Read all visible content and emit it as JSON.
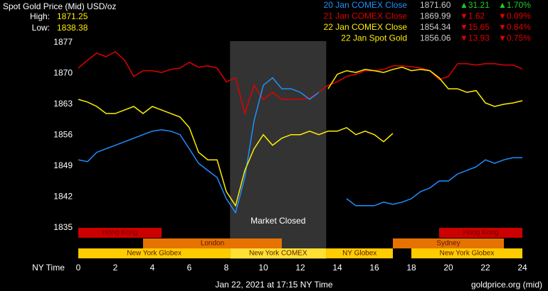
{
  "chart_data": {
    "type": "line",
    "title": "Spot Gold Price (Mid) USD/oz",
    "high": {
      "label": "High:",
      "value": 1871.25
    },
    "low": {
      "label": "Low:",
      "value": 1838.38
    },
    "x_label": "NY Time",
    "footer_left": "Jan 22, 2021 at 17:15 NY Time",
    "footer_right": "goldprice.org (mid)",
    "xlim": [
      0,
      24
    ],
    "xticks": [
      0,
      2,
      4,
      6,
      8,
      10,
      12,
      14,
      16,
      18,
      20,
      22,
      24
    ],
    "ylim": [
      1827.9,
      1877.3
    ],
    "yticks": [
      1835,
      1842,
      1849,
      1856,
      1863,
      1870,
      1877
    ],
    "grid": false,
    "closed": {
      "start": 8.2,
      "end": 13.4,
      "label": "Market Closed",
      "color": "#333333"
    },
    "x": [
      0,
      0.5,
      1,
      1.5,
      2,
      2.5,
      3,
      3.5,
      4,
      4.5,
      5,
      5.5,
      6,
      6.5,
      7,
      7.5,
      8,
      8.5,
      9,
      9.5,
      10,
      10.5,
      11,
      11.5,
      12,
      12.5,
      13,
      13.5,
      14,
      14.5,
      15,
      15.5,
      16,
      16.5,
      17,
      17.5,
      18,
      18.5,
      19,
      19.5,
      20,
      20.5,
      21,
      21.5,
      22,
      22.5,
      23,
      23.5,
      24
    ],
    "series": [
      {
        "name": "20 Jan COMEX Close",
        "color": "#1e90ff",
        "price": "1871.60",
        "change": "▲31.21",
        "change_pct": "▲1.70%",
        "change_color": "#22cc22",
        "values": [
          1850.4,
          1850.0,
          1852.1,
          1852.9,
          1853.7,
          1854.5,
          1855.3,
          1856.1,
          1856.9,
          1857.2,
          1856.9,
          1856.1,
          1852.9,
          1849.6,
          1848.0,
          1846.4,
          1841.6,
          1838.4,
          1846.4,
          1859.3,
          1867.3,
          1869.0,
          1866.5,
          1866.5,
          1865.7,
          1864.1,
          1865.7,
          null,
          null,
          1841.6,
          1840.0,
          1840.0,
          1840.0,
          1840.8,
          1840.3,
          1840.8,
          1841.6,
          1843.2,
          1844.0,
          1845.6,
          1845.6,
          1847.2,
          1848.0,
          1848.8,
          1850.4,
          1849.6,
          1850.4,
          1850.9,
          1850.9
        ]
      },
      {
        "name": "21 Jan COMEX Close",
        "color": "#e00000",
        "price": "1869.99",
        "change": "▼1.62",
        "change_pct": "▼0.09%",
        "change_color": "#e00000",
        "values": [
          1871.2,
          1873.0,
          1874.6,
          1873.8,
          1874.9,
          1873.0,
          1869.3,
          1870.6,
          1870.6,
          1870.2,
          1870.9,
          1871.2,
          1872.5,
          1871.4,
          1871.7,
          1871.2,
          1868.1,
          1869.0,
          1860.9,
          1867.3,
          1864.1,
          1865.7,
          1864.1,
          1864.1,
          1864.1,
          1864.4,
          1865.7,
          1867.3,
          1868.1,
          1869.3,
          1869.8,
          1870.6,
          1870.6,
          1870.9,
          1871.7,
          1871.7,
          1871.5,
          1871.2,
          1870.6,
          1868.6,
          1869.3,
          1872.2,
          1872.2,
          1871.9,
          1872.2,
          1872.2,
          1871.9,
          1871.9,
          1871.0
        ]
      },
      {
        "name": "22 Jan COMEX Close",
        "color": "#ffee00",
        "price": "1854.34",
        "change": "▼15.65",
        "change_pct": "▼0.84%",
        "change_color": "#e00000",
        "values": [
          null,
          null,
          null,
          null,
          null,
          null,
          null,
          null,
          null,
          null,
          null,
          null,
          null,
          null,
          null,
          null,
          null,
          null,
          null,
          null,
          null,
          null,
          null,
          null,
          null,
          null,
          null,
          1866.5,
          1869.8,
          1870.6,
          1870.2,
          1870.9,
          1870.6,
          1870.2,
          1870.9,
          1871.4,
          1870.6,
          1870.9,
          1870.6,
          1869.0,
          1866.5,
          1866.5,
          1865.7,
          1866.1,
          1863.3,
          1862.5,
          1863.0,
          1863.3,
          1863.8
        ]
      },
      {
        "name": "22 Jan Spot Gold",
        "color": "#ffee00",
        "price": "1856.06",
        "change": "▼13.93",
        "change_pct": "▼0.75%",
        "change_color": "#e00000",
        "values": [
          1864.1,
          1863.5,
          1862.5,
          1860.9,
          1860.9,
          1861.7,
          1862.5,
          1860.9,
          1862.5,
          1861.7,
          1860.9,
          1860.1,
          1857.7,
          1852.1,
          1850.4,
          1850.4,
          1843.2,
          1840.0,
          1848.0,
          1852.9,
          1856.1,
          1853.7,
          1855.3,
          1856.1,
          1856.1,
          1856.9,
          1856.1,
          1856.9,
          1856.9,
          1857.7,
          1856.1,
          1856.9,
          1856.1,
          1854.5,
          1856.4,
          null,
          null,
          null,
          null,
          null,
          null,
          null,
          null,
          null,
          null,
          null,
          null,
          null,
          null
        ]
      }
    ],
    "session_rows": [
      [
        {
          "name": "Hong Kong",
          "start": 0,
          "end": 4.5,
          "color": "#cc0000"
        },
        {
          "name": "Hong Kong",
          "start": 19.5,
          "end": 24,
          "color": "#cc0000"
        }
      ],
      [
        {
          "name": "London",
          "start": 3.5,
          "end": 11,
          "color": "#e67300"
        },
        {
          "name": "Sydney",
          "start": 17,
          "end": 23,
          "color": "#e67300"
        }
      ],
      [
        {
          "name": "New York Globex",
          "start": 0,
          "end": 8.2,
          "color": "#ffcc00"
        },
        {
          "name": "New York COMEX",
          "start": 8.2,
          "end": 13.4,
          "color": "#ffe033"
        },
        {
          "name": "NY Globex",
          "start": 13.4,
          "end": 17,
          "color": "#ffcc00"
        },
        {
          "name": "New York Globex",
          "start": 18,
          "end": 24,
          "color": "#ffcc00"
        }
      ]
    ]
  }
}
